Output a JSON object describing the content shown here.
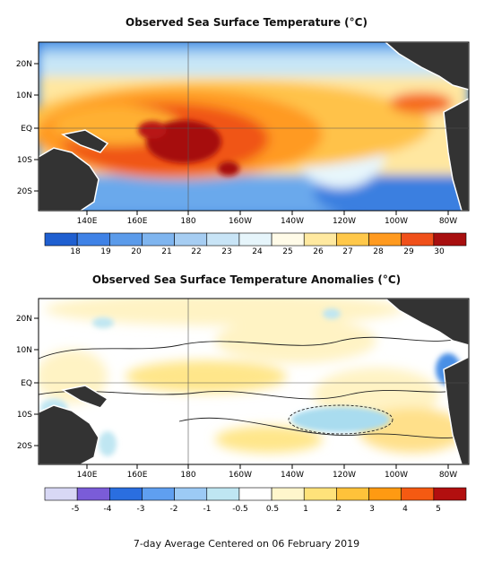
{
  "map1": {
    "title": "Observed Sea Surface Temperature (°C)",
    "lat_labels": [
      "20N",
      "10N",
      "EQ",
      "10S",
      "20S"
    ],
    "lon_labels": [
      "140E",
      "160E",
      "180",
      "160W",
      "140W",
      "120W",
      "100W",
      "80W"
    ],
    "colorbar": {
      "colors": [
        "#1f5fd0",
        "#3f82e6",
        "#5b9bea",
        "#7fb5ef",
        "#a6cdf2",
        "#c8e4f6",
        "#e6f5fb",
        "#fffbe8",
        "#ffe9a0",
        "#ffc84a",
        "#ff9a1f",
        "#f0501a",
        "#a80f0f"
      ],
      "labels": [
        "18",
        "19",
        "20",
        "21",
        "22",
        "23",
        "24",
        "25",
        "26",
        "27",
        "28",
        "29",
        "30"
      ]
    }
  },
  "map2": {
    "title": "Observed Sea Surface Temperature Anomalies (°C)",
    "lat_labels": [
      "20N",
      "10N",
      "EQ",
      "10S",
      "20S"
    ],
    "lon_labels": [
      "140E",
      "160E",
      "180",
      "160W",
      "140W",
      "120W",
      "100W",
      "80W"
    ],
    "colorbar": {
      "colors": [
        "#d8d8f5",
        "#7a5cd8",
        "#2a6ee0",
        "#5f9ff0",
        "#9ccaf5",
        "#bfe6f2",
        "#ffffff",
        "#fff6cc",
        "#ffe27a",
        "#ffc23a",
        "#ff9a12",
        "#f55a12",
        "#b20f0f"
      ],
      "labels": [
        "-5",
        "-4",
        "-3",
        "-2",
        "-1",
        "-0.5",
        "0.5",
        "1",
        "2",
        "3",
        "4",
        "5"
      ]
    }
  },
  "footer": "7-day Average Centered on 06 February 2019"
}
